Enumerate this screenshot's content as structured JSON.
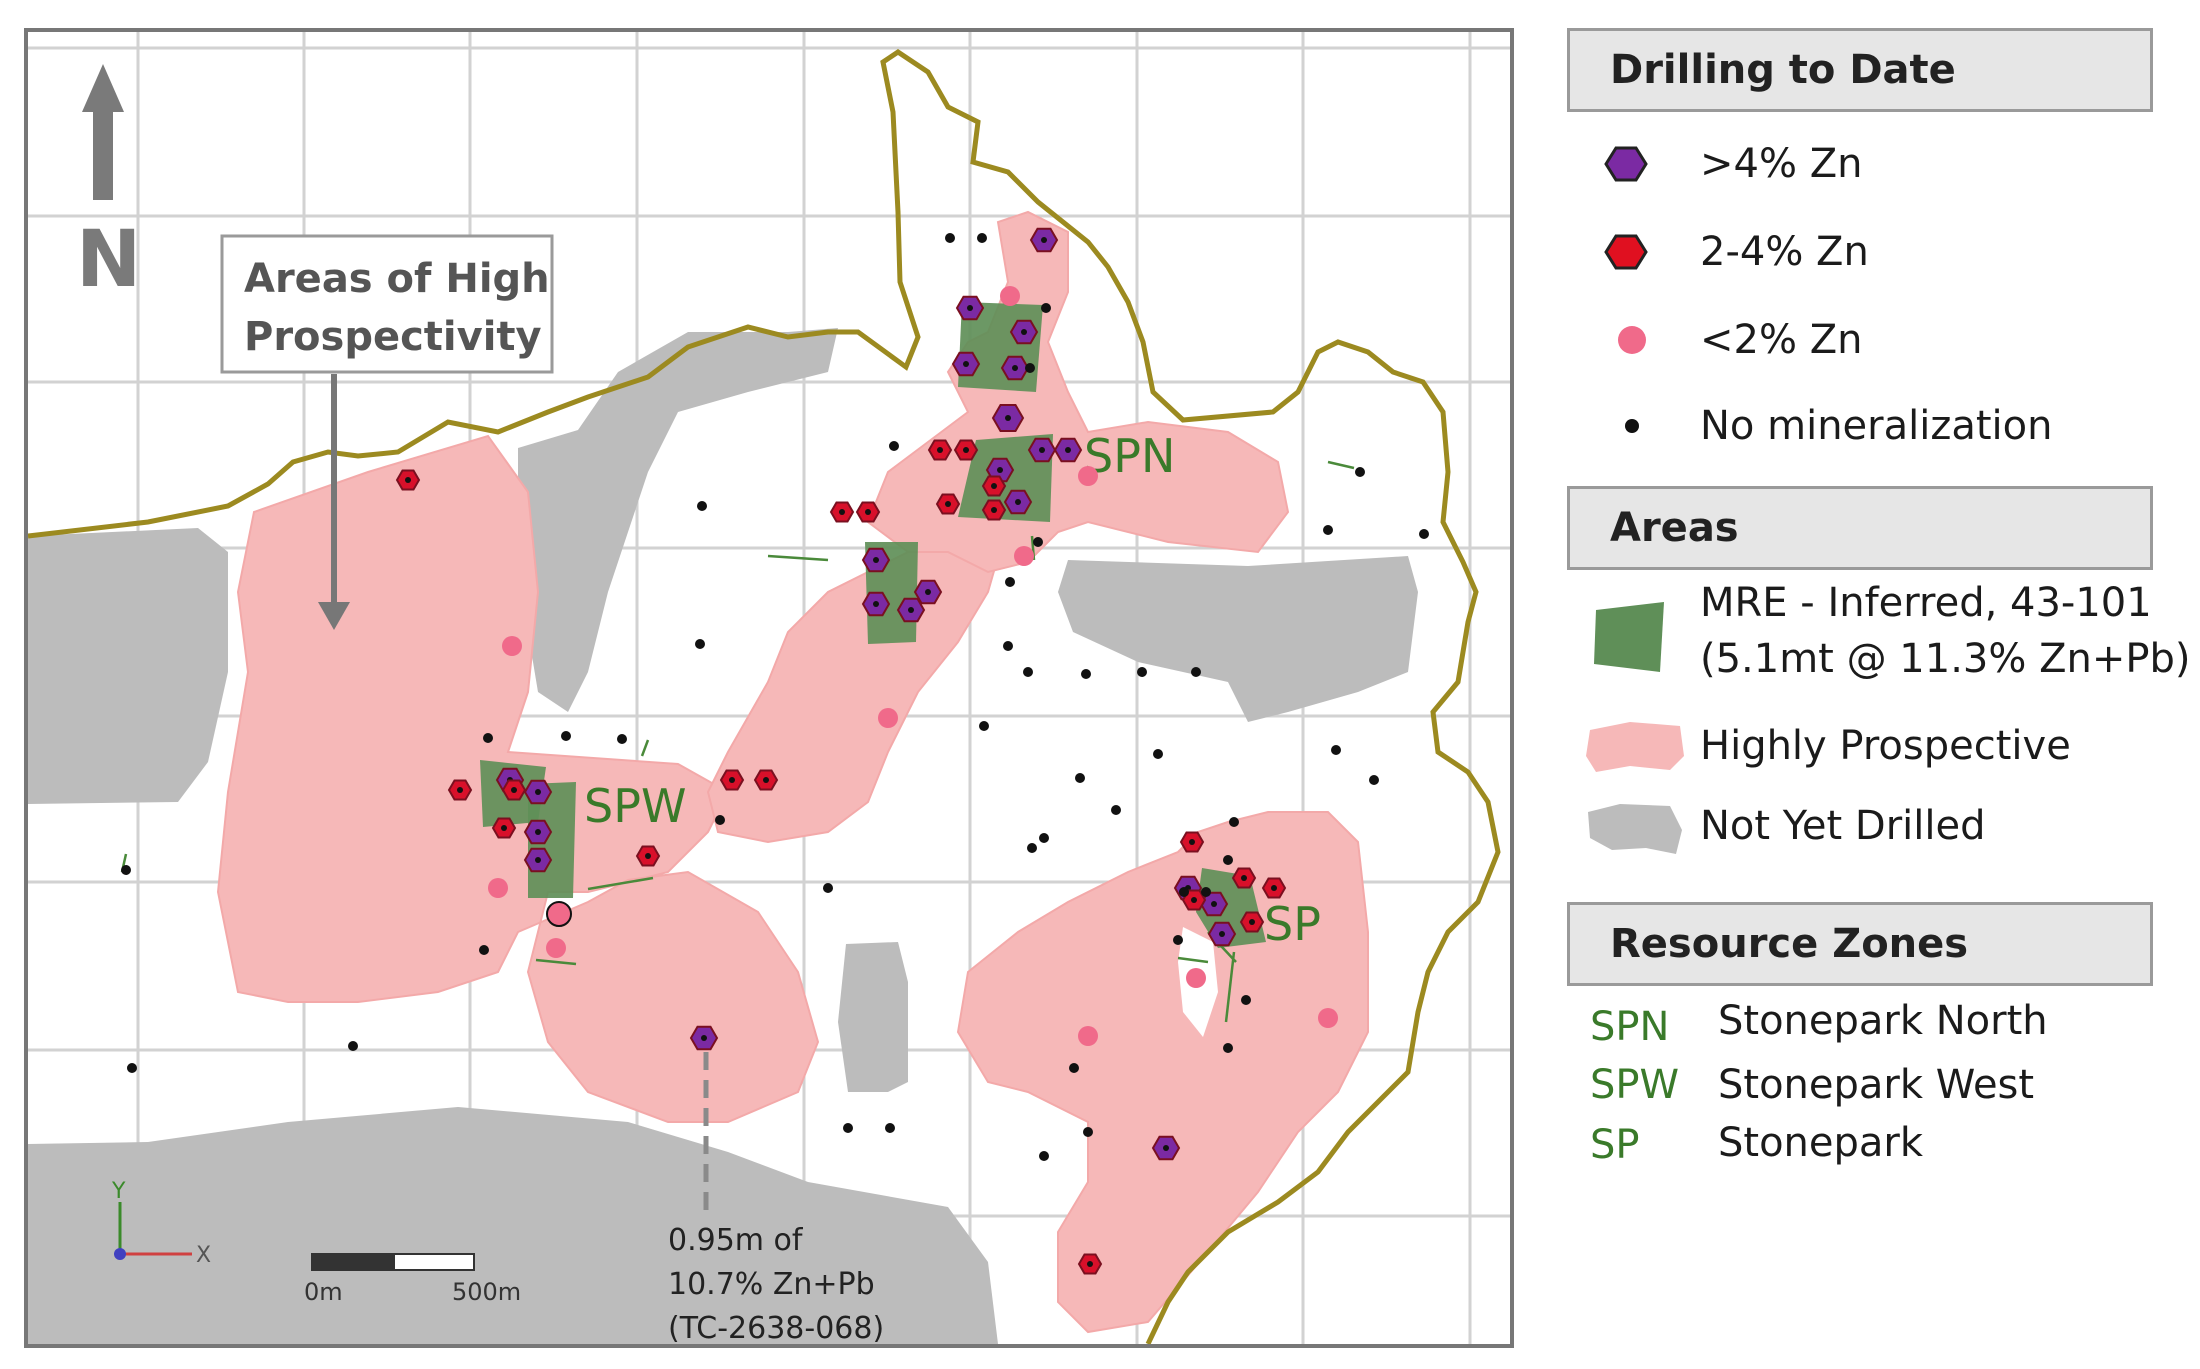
{
  "map": {
    "north_label": "N",
    "callout": {
      "line1": "Areas of High",
      "line2": "Prospectivity"
    },
    "zone_labels": {
      "spn": "SPN",
      "spw": "SPW",
      "sp": "SP"
    },
    "annotation": {
      "line1": "0.95m of",
      "line2": "10.7% Zn+Pb",
      "line3": "(TC-2638-068)"
    },
    "scale_bar": {
      "start": "0m",
      "end": "500m"
    },
    "axes": {
      "y": "Y",
      "x": "X"
    },
    "colors": {
      "highly_prospective": "#f6b8b8",
      "not_yet_drilled": "#bcbcbc",
      "mre": "#5f8f58",
      "boundary": "#9c8a20",
      "grid": "#d2d2d2",
      "zn_gt4": "#7b2aa3",
      "zn_2_4": "#d8102a",
      "zn_lt2": "#f06a8a",
      "no_min": "#111111"
    }
  },
  "legend": {
    "drilling": {
      "title": "Drilling to Date",
      "items": [
        {
          "label": ">4% Zn",
          "icon": "purple-hexagon-icon"
        },
        {
          "label": "2-4% Zn",
          "icon": "red-hexagon-icon"
        },
        {
          "label": "<2% Zn",
          "icon": "pink-dot-icon"
        },
        {
          "label": "No mineralization",
          "icon": "black-dot-icon"
        }
      ]
    },
    "areas": {
      "title": "Areas",
      "mre_line1": "MRE - Inferred, 43-101",
      "mre_line2": "(5.1mt @ 11.3% Zn+Pb)",
      "highly_prospective": "Highly Prospective",
      "not_yet_drilled": "Not Yet Drilled"
    },
    "zones": {
      "title": "Resource Zones",
      "items": [
        {
          "abbr": "SPN",
          "name": "Stonepark North"
        },
        {
          "abbr": "SPW",
          "name": "Stonepark West"
        },
        {
          "abbr": "SP",
          "name": "Stonepark"
        }
      ]
    }
  }
}
